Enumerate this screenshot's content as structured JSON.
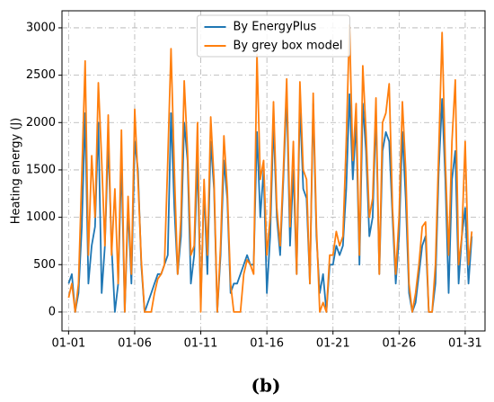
{
  "chart_data": {
    "type": "line",
    "ylabel": "Heating energy (J)",
    "caption": "(b)",
    "legend": "upper center",
    "grid": true,
    "x": [
      1,
      1.25,
      1.5,
      1.75,
      2,
      2.25,
      2.5,
      2.75,
      3,
      3.25,
      3.5,
      3.75,
      4,
      4.25,
      4.5,
      4.75,
      5,
      5.25,
      5.5,
      5.75,
      6,
      6.25,
      6.5,
      6.75,
      7,
      7.25,
      7.5,
      7.75,
      8,
      8.25,
      8.5,
      8.75,
      9,
      9.25,
      9.5,
      9.75,
      10,
      10.25,
      10.5,
      10.75,
      11,
      11.25,
      11.5,
      11.75,
      12,
      12.25,
      12.5,
      12.75,
      13,
      13.25,
      13.5,
      13.75,
      14,
      14.25,
      14.5,
      14.75,
      15,
      15.25,
      15.5,
      15.75,
      16,
      16.25,
      16.5,
      16.75,
      17,
      17.25,
      17.5,
      17.75,
      18,
      18.25,
      18.5,
      18.75,
      19,
      19.25,
      19.5,
      19.75,
      20,
      20.25,
      20.5,
      20.75,
      21,
      21.25,
      21.5,
      21.75,
      22,
      22.25,
      22.5,
      22.75,
      23,
      23.25,
      23.5,
      23.75,
      24,
      24.25,
      24.5,
      24.75,
      25,
      25.25,
      25.5,
      25.75,
      26,
      26.25,
      26.5,
      26.75,
      27,
      27.25,
      27.5,
      27.75,
      28,
      28.25,
      28.5,
      28.75,
      29,
      29.25,
      29.5,
      29.75,
      30,
      30.25,
      30.5,
      30.75,
      31,
      31.25,
      31.5
    ],
    "series": [
      {
        "name": "By EnergyPlus",
        "color": "#1f77b4",
        "values": [
          300,
          400,
          0,
          200,
          900,
          2100,
          300,
          700,
          900,
          2000,
          200,
          700,
          1800,
          700,
          0,
          300,
          1600,
          0,
          1100,
          300,
          1800,
          1500,
          500,
          0,
          100,
          200,
          300,
          400,
          400,
          500,
          600,
          2100,
          1100,
          400,
          800,
          2000,
          1600,
          300,
          600,
          1600,
          100,
          1300,
          400,
          1800,
          1300,
          0,
          600,
          1600,
          1200,
          200,
          300,
          300,
          400,
          500,
          600,
          500,
          500,
          1900,
          1000,
          1500,
          200,
          800,
          2000,
          1000,
          600,
          1400,
          2300,
          700,
          1500,
          400,
          2200,
          1300,
          1200,
          300,
          2200,
          800,
          200,
          400,
          0,
          500,
          500,
          700,
          600,
          700,
          1300,
          2300,
          1400,
          2000,
          500,
          2200,
          1700,
          800,
          1000,
          2100,
          400,
          1700,
          1900,
          1800,
          1000,
          300,
          800,
          1900,
          1200,
          200,
          0,
          100,
          400,
          700,
          800,
          0,
          0,
          300,
          1500,
          2250,
          1400,
          200,
          1400,
          1700,
          300,
          800,
          1100,
          300,
          800
        ]
      },
      {
        "name": "By grey box model",
        "color": "#ff7f0e",
        "values": [
          150,
          300,
          0,
          300,
          1450,
          2650,
          600,
          1650,
          1000,
          2420,
          1600,
          700,
          2080,
          600,
          1300,
          300,
          1920,
          0,
          1220,
          400,
          2140,
          1400,
          550,
          0,
          0,
          0,
          200,
          350,
          400,
          500,
          1600,
          2780,
          1500,
          400,
          1000,
          2440,
          1700,
          600,
          700,
          2000,
          0,
          1400,
          600,
          2060,
          1400,
          0,
          700,
          1860,
          1300,
          300,
          0,
          0,
          0,
          400,
          550,
          500,
          400,
          2720,
          1400,
          1600,
          600,
          1000,
          2220,
          1100,
          700,
          1500,
          2460,
          900,
          1800,
          400,
          2430,
          1500,
          1400,
          300,
          2310,
          900,
          0,
          100,
          0,
          600,
          600,
          850,
          700,
          800,
          1800,
          3030,
          1600,
          2200,
          600,
          2600,
          1900,
          1000,
          1200,
          2260,
          400,
          2000,
          2100,
          2410,
          1100,
          400,
          1000,
          2220,
          1500,
          300,
          0,
          200,
          500,
          900,
          950,
          0,
          0,
          500,
          1700,
          2950,
          1600,
          600,
          1800,
          2450,
          500,
          800,
          1800,
          500,
          850
        ]
      }
    ],
    "xlim": [
      0.5,
      32.5
    ],
    "xticks": [
      {
        "value": 1,
        "label": "01-01"
      },
      {
        "value": 6,
        "label": "01-06"
      },
      {
        "value": 11,
        "label": "01-11"
      },
      {
        "value": 16,
        "label": "01-16"
      },
      {
        "value": 21,
        "label": "01-21"
      },
      {
        "value": 26,
        "label": "01-26"
      },
      {
        "value": 31,
        "label": "01-31"
      }
    ],
    "ylim": [
      -200,
      3180
    ],
    "yticks": [
      0,
      500,
      1000,
      1500,
      2000,
      2500,
      3000
    ]
  }
}
